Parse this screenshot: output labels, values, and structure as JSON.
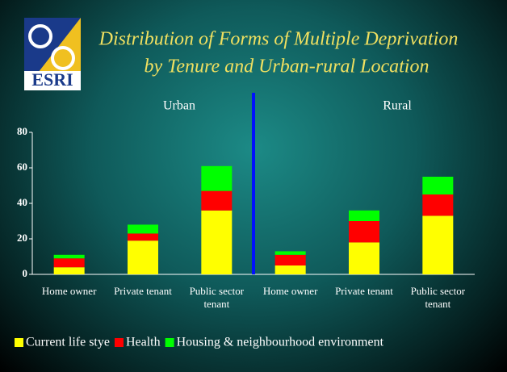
{
  "logo": "ESRI",
  "chart_data": {
    "type": "stacked_bar",
    "title": [
      "Distribution of Forms of Multiple Deprivation",
      "by Tenure and Urban-rural Location"
    ],
    "group_labels": [
      "Urban",
      "Rural"
    ],
    "categories": [
      "Home owner",
      "Private tenant",
      "Public sector tenant",
      "Home owner",
      "Private tenant",
      "Public sector tenant"
    ],
    "series": [
      {
        "name": "Current life stye",
        "color": "#ffff00",
        "values": [
          4,
          19,
          36,
          5,
          18,
          33
        ]
      },
      {
        "name": "Health",
        "color": "#ff0000",
        "values": [
          5,
          4,
          11,
          6,
          12,
          12
        ]
      },
      {
        "name": "Housing & neighbourhood environment",
        "color": "#00ff00",
        "values": [
          2,
          5,
          14,
          2,
          6,
          10
        ]
      }
    ],
    "ylim": [
      0,
      80
    ],
    "yticks": [
      0,
      20,
      40,
      60,
      80
    ]
  }
}
